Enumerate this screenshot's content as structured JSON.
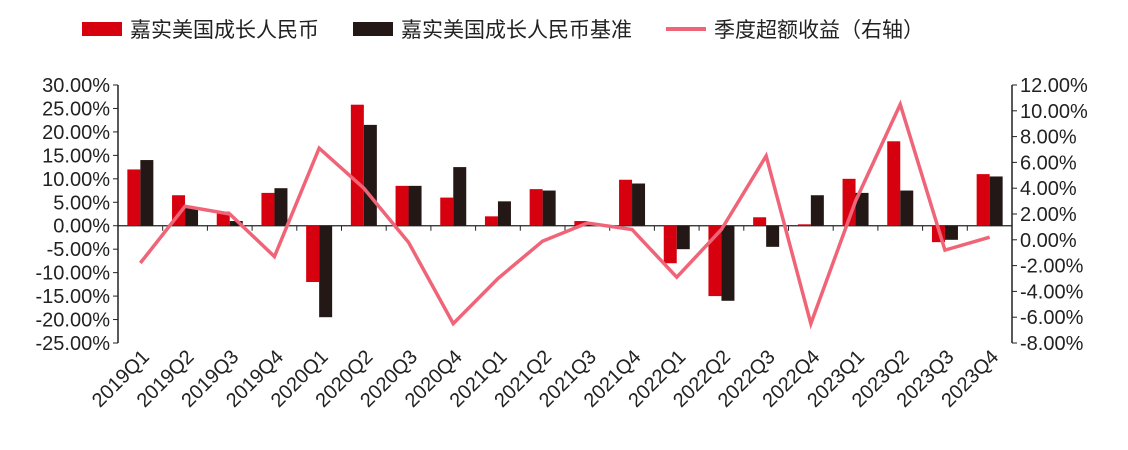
{
  "chart_data": {
    "type": "bar",
    "categories": [
      "2019Q1",
      "2019Q2",
      "2019Q3",
      "2019Q4",
      "2020Q1",
      "2020Q2",
      "2020Q3",
      "2020Q4",
      "2021Q1",
      "2021Q2",
      "2021Q3",
      "2021Q4",
      "2022Q1",
      "2022Q2",
      "2022Q3",
      "2022Q4",
      "2023Q1",
      "2023Q2",
      "2023Q3",
      "2023Q4"
    ],
    "series": [
      {
        "name": "嘉实美国成长人民币",
        "type": "bar",
        "axis": "left",
        "color": "#d7000f",
        "values": [
          12.0,
          6.5,
          3.0,
          7.0,
          -12.0,
          25.8,
          8.5,
          6.0,
          2.0,
          7.8,
          1.0,
          9.8,
          -8.0,
          -15.0,
          1.8,
          0.3,
          10.0,
          18.0,
          -3.5,
          11.0
        ]
      },
      {
        "name": "嘉实美国成长人民币基准",
        "type": "bar",
        "axis": "left",
        "color": "#231815",
        "values": [
          14.0,
          4.0,
          1.0,
          8.0,
          -19.5,
          21.5,
          8.5,
          12.5,
          5.2,
          7.5,
          0.3,
          9.0,
          -5.0,
          -16.0,
          -4.5,
          6.5,
          7.0,
          7.5,
          -3.0,
          10.5
        ]
      },
      {
        "name": "季度超额收益（右轴）",
        "type": "line",
        "axis": "right",
        "color": "#f06478",
        "values": [
          -1.8,
          2.6,
          2.0,
          -1.3,
          7.1,
          4.0,
          -0.2,
          -6.5,
          -3.0,
          -0.1,
          1.3,
          0.8,
          -2.9,
          0.8,
          6.5,
          -6.5,
          3.0,
          10.5,
          -0.8,
          0.2
        ]
      }
    ],
    "y_left": {
      "min": -25,
      "max": 30,
      "step": 5,
      "ticks": [
        "30.00%",
        "25.00%",
        "20.00%",
        "15.00%",
        "10.00%",
        "5.00%",
        "0.00%",
        "-5.00%",
        "-10.00%",
        "-15.00%",
        "-20.00%",
        "-25.00%"
      ]
    },
    "y_right": {
      "min": -8,
      "max": 12,
      "step": 2,
      "ticks": [
        "12.00%",
        "10.00%",
        "8.00%",
        "6.00%",
        "4.00%",
        "2.00%",
        "0.00%",
        "-2.00%",
        "-4.00%",
        "-6.00%",
        "-8.00%"
      ]
    },
    "title": "",
    "xlabel": "",
    "ylabel": "",
    "grid": false,
    "legend": "top"
  }
}
